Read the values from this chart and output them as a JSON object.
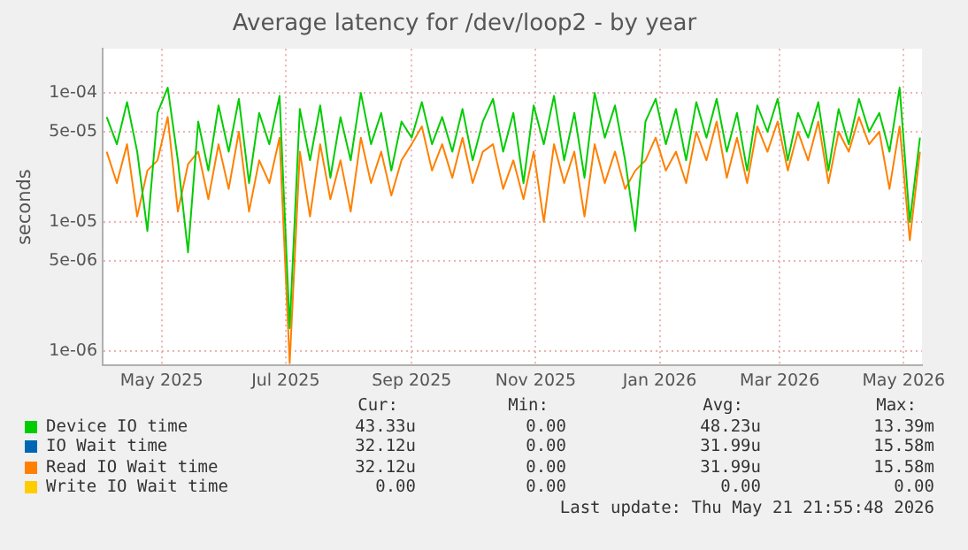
{
  "chart_data": {
    "type": "line",
    "title": "Average latency for /dev/loop2 - by year",
    "ylabel": "seconds",
    "log": "y",
    "grid": true,
    "legend": "bottom",
    "marker": "none",
    "line_style": "solid",
    "xlim": [
      "2025-04-02",
      "2026-05-10"
    ],
    "xticks": [
      {
        "value": "2025-05-01",
        "label": "May 2025"
      },
      {
        "value": "2025-07-01",
        "label": "Jul 2025"
      },
      {
        "value": "2025-09-01",
        "label": "Sep 2025"
      },
      {
        "value": "2025-11-01",
        "label": "Nov 2025"
      },
      {
        "value": "2026-01-01",
        "label": "Jan 2026"
      },
      {
        "value": "2026-03-01",
        "label": "Mar 2026"
      },
      {
        "value": "2026-05-01",
        "label": "May 2026"
      }
    ],
    "ylim": [
      7.7e-07,
      0.00022
    ],
    "yticks": [
      {
        "value": 1e-06,
        "label": "1e-06"
      },
      {
        "value": 5e-06,
        "label": "5e-06"
      },
      {
        "value": 1e-05,
        "label": "1e-05"
      },
      {
        "value": 5e-05,
        "label": "5e-05"
      },
      {
        "value": 0.0001,
        "label": "1e-04"
      }
    ],
    "x": [
      "2025-04-04",
      "2025-04-09",
      "2025-04-14",
      "2025-04-19",
      "2025-04-24",
      "2025-04-29",
      "2025-05-04",
      "2025-05-09",
      "2025-05-14",
      "2025-05-19",
      "2025-05-24",
      "2025-05-29",
      "2025-06-03",
      "2025-06-08",
      "2025-06-13",
      "2025-06-18",
      "2025-06-23",
      "2025-06-28",
      "2025-07-03",
      "2025-07-08",
      "2025-07-13",
      "2025-07-18",
      "2025-07-23",
      "2025-07-28",
      "2025-08-02",
      "2025-08-07",
      "2025-08-12",
      "2025-08-17",
      "2025-08-22",
      "2025-08-27",
      "2025-09-01",
      "2025-09-06",
      "2025-09-11",
      "2025-09-16",
      "2025-09-21",
      "2025-09-26",
      "2025-10-01",
      "2025-10-06",
      "2025-10-11",
      "2025-10-16",
      "2025-10-21",
      "2025-10-26",
      "2025-10-31",
      "2025-11-05",
      "2025-11-10",
      "2025-11-15",
      "2025-11-20",
      "2025-11-25",
      "2025-11-30",
      "2025-12-05",
      "2025-12-10",
      "2025-12-15",
      "2025-12-20",
      "2025-12-25",
      "2025-12-30",
      "2026-01-04",
      "2026-01-09",
      "2026-01-14",
      "2026-01-19",
      "2026-01-24",
      "2026-01-29",
      "2026-02-03",
      "2026-02-08",
      "2026-02-13",
      "2026-02-18",
      "2026-02-23",
      "2026-02-28",
      "2026-03-05",
      "2026-03-10",
      "2026-03-15",
      "2026-03-20",
      "2026-03-25",
      "2026-03-30",
      "2026-04-04",
      "2026-04-09",
      "2026-04-14",
      "2026-04-19",
      "2026-04-24",
      "2026-04-29",
      "2026-05-04",
      "2026-05-09"
    ],
    "series": [
      {
        "name": "Device IO time",
        "color": "#00cc00",
        "values": [
          6.5e-05,
          4e-05,
          8.5e-05,
          3.5e-05,
          8.5e-06,
          7e-05,
          0.00011,
          3e-05,
          5.8e-06,
          6e-05,
          2.5e-05,
          8e-05,
          3.5e-05,
          9e-05,
          2e-05,
          7e-05,
          4e-05,
          9.5e-05,
          1.5e-06,
          7.5e-05,
          3e-05,
          8e-05,
          2.2e-05,
          6.5e-05,
          3e-05,
          0.0001,
          4e-05,
          7e-05,
          2.5e-05,
          6e-05,
          4.5e-05,
          8.5e-05,
          4e-05,
          6.5e-05,
          3.5e-05,
          7.5e-05,
          3e-05,
          6e-05,
          9e-05,
          3.5e-05,
          7e-05,
          2e-05,
          8e-05,
          4e-05,
          9.5e-05,
          3e-05,
          7e-05,
          2.2e-05,
          0.0001,
          4.5e-05,
          8e-05,
          3e-05,
          8.5e-06,
          6e-05,
          9e-05,
          4e-05,
          7.5e-05,
          3e-05,
          8.5e-05,
          4.5e-05,
          9e-05,
          3.5e-05,
          7e-05,
          2.5e-05,
          8e-05,
          5e-05,
          9e-05,
          3e-05,
          7e-05,
          4.5e-05,
          8.5e-05,
          2.5e-05,
          7.5e-05,
          4e-05,
          9e-05,
          5e-05,
          7e-05,
          3.5e-05,
          0.00011,
          1e-05,
          4.5e-05
        ]
      },
      {
        "name": "IO Wait time",
        "color": "#0066b3",
        "values": [
          null,
          null,
          null,
          null,
          null,
          null,
          null,
          null,
          null,
          null,
          null,
          null,
          null,
          null,
          null,
          null,
          null,
          null,
          null,
          null,
          null,
          null,
          null,
          null,
          null,
          null,
          null,
          null,
          null,
          null,
          null,
          null,
          null,
          null,
          null,
          null,
          null,
          null,
          null,
          null,
          null,
          null,
          null,
          null,
          null,
          null,
          null,
          null,
          null,
          null,
          null,
          null,
          null,
          null,
          null,
          null,
          null,
          null,
          null,
          null,
          null,
          null,
          null,
          null,
          null,
          null,
          null,
          null,
          null,
          null,
          null,
          null,
          null,
          null,
          null,
          null,
          null,
          null,
          null,
          null,
          null
        ]
      },
      {
        "name": "Read IO Wait time",
        "color": "#ff8000",
        "values": [
          3.5e-05,
          2e-05,
          4e-05,
          1.1e-05,
          2.5e-05,
          3e-05,
          6.5e-05,
          1.2e-05,
          2.8e-05,
          3.5e-05,
          1.5e-05,
          4e-05,
          1.8e-05,
          5e-05,
          1.2e-05,
          3e-05,
          2e-05,
          4.5e-05,
          8e-07,
          3.5e-05,
          1.1e-05,
          4e-05,
          1.5e-05,
          3e-05,
          1.2e-05,
          4.5e-05,
          2e-05,
          3.5e-05,
          1.6e-05,
          3e-05,
          4e-05,
          5.5e-05,
          2.5e-05,
          4e-05,
          2.2e-05,
          4.5e-05,
          2e-05,
          3.5e-05,
          4e-05,
          1.8e-05,
          3e-05,
          1.5e-05,
          3.5e-05,
          1e-05,
          4e-05,
          2e-05,
          3.5e-05,
          1.1e-05,
          4e-05,
          2e-05,
          3.5e-05,
          1.8e-05,
          2.5e-05,
          3e-05,
          4.5e-05,
          2.5e-05,
          3.5e-05,
          2e-05,
          5e-05,
          3e-05,
          6e-05,
          2.2e-05,
          4.5e-05,
          2e-05,
          5.5e-05,
          3.5e-05,
          6e-05,
          2.5e-05,
          5e-05,
          3e-05,
          6e-05,
          2e-05,
          5e-05,
          3.5e-05,
          6.5e-05,
          4e-05,
          5e-05,
          1.8e-05,
          5.5e-05,
          7.2e-06,
          3.5e-05
        ]
      },
      {
        "name": "Write IO Wait time",
        "color": "#ffcc00",
        "values": [
          null,
          null,
          null,
          null,
          null,
          null,
          null,
          null,
          null,
          null,
          null,
          null,
          null,
          null,
          null,
          null,
          null,
          null,
          null,
          null,
          null,
          null,
          null,
          null,
          null,
          null,
          null,
          null,
          null,
          null,
          null,
          null,
          null,
          null,
          null,
          null,
          null,
          null,
          null,
          null,
          null,
          null,
          null,
          null,
          null,
          null,
          null,
          null,
          null,
          null,
          null,
          null,
          null,
          null,
          null,
          null,
          null,
          null,
          null,
          null,
          null,
          null,
          null,
          null,
          null,
          null,
          null,
          null,
          null,
          null,
          null,
          null,
          null,
          null,
          null,
          null,
          null,
          null,
          null,
          null,
          null
        ]
      }
    ],
    "annotations": [
      "Cur:",
      "Min:",
      "Avg:",
      "Max:",
      "43.33u",
      "0.00",
      "48.23u",
      "13.39m",
      "32.12u",
      "0.00",
      "31.99u",
      "15.58m",
      "32.12u",
      "0.00",
      "31.99u",
      "15.58m",
      "0.00",
      "0.00",
      "0.00",
      "0.00",
      "Last update: Thu May 21 21:55:48 2026"
    ]
  }
}
